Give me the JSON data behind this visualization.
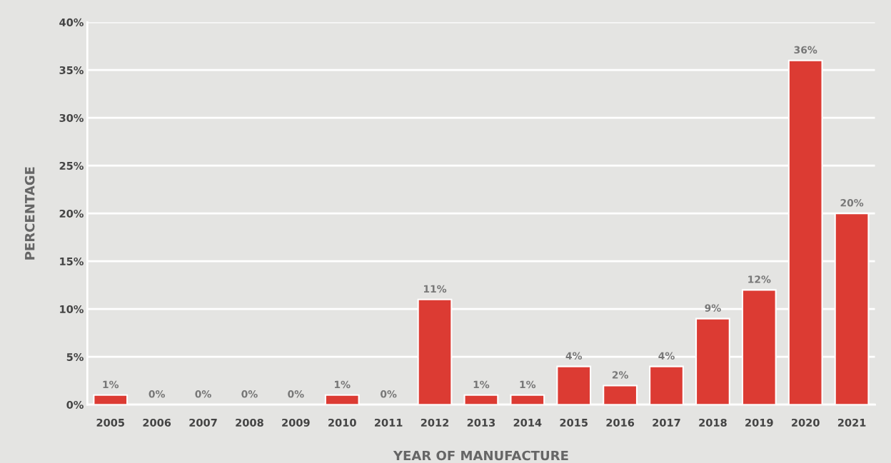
{
  "chart_data": {
    "type": "bar",
    "xlabel": "YEAR OF MANUFACTURE",
    "ylabel": "PERCENTAGE",
    "categories": [
      "2005",
      "2006",
      "2007",
      "2008",
      "2009",
      "2010",
      "2011",
      "2012",
      "2013",
      "2014",
      "2015",
      "2016",
      "2017",
      "2018",
      "2019",
      "2020",
      "2021"
    ],
    "values": [
      1,
      0,
      0,
      0,
      0,
      1,
      0,
      11,
      1,
      1,
      4,
      2,
      4,
      9,
      12,
      36,
      20
    ],
    "value_labels": [
      "1%",
      "0%",
      "0%",
      "0%",
      "0%",
      "1%",
      "0%",
      "11%",
      "1%",
      "1%",
      "4%",
      "2%",
      "4%",
      "9%",
      "12%",
      "36%",
      "20%"
    ],
    "color": "#dc3b33",
    "ylim": [
      0,
      40
    ],
    "yticks": [
      {
        "value": 0,
        "label": "0%"
      },
      {
        "value": 5,
        "label": "5%"
      },
      {
        "value": 10,
        "label": "10%"
      },
      {
        "value": 15,
        "label": "15%"
      },
      {
        "value": 20,
        "label": "20%"
      },
      {
        "value": 25,
        "label": "25%"
      },
      {
        "value": 30,
        "label": "30%"
      },
      {
        "value": 35,
        "label": "35%"
      },
      {
        "value": 40,
        "label": "40%"
      }
    ],
    "grid": "y"
  }
}
